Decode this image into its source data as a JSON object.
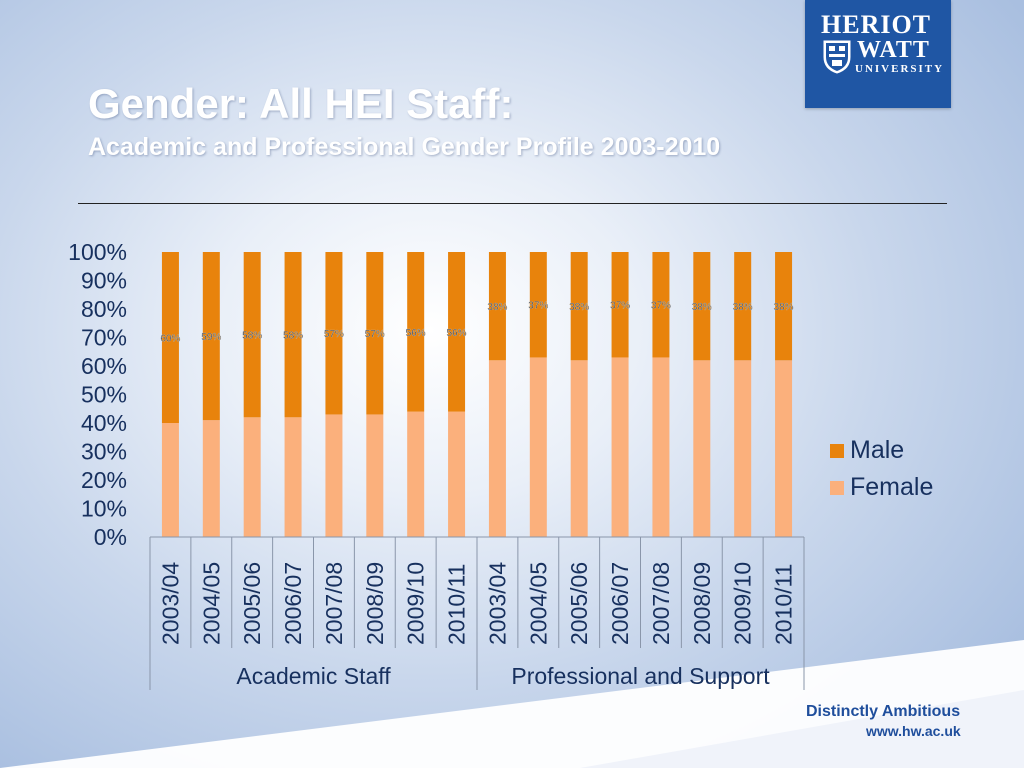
{
  "slide": {
    "title": "Gender: All HEI Staff:",
    "subtitle": "Academic and Professional Gender Profile 2003-2010"
  },
  "logo": {
    "line1": "HERIOT",
    "line2": "WATT",
    "line3": "UNIVERSITY"
  },
  "footer": {
    "tagline": "Distinctly Ambitious",
    "url": "www.hw.ac.uk"
  },
  "colors": {
    "male": "#e8830c",
    "female": "#fbb07c",
    "text": "#17305e",
    "brand": "#1f56a4"
  },
  "chart_data": {
    "type": "bar",
    "stacked": true,
    "percent_stacked": true,
    "title": "",
    "xlabel": "",
    "ylabel": "",
    "ylim": [
      0,
      100
    ],
    "yticks": [
      "0%",
      "10%",
      "20%",
      "30%",
      "40%",
      "50%",
      "60%",
      "70%",
      "80%",
      "90%",
      "100%"
    ],
    "groups": [
      {
        "name": "Academic Staff",
        "count": 8
      },
      {
        "name": "Professional and Support",
        "count": 8
      }
    ],
    "categories": [
      "2003/04",
      "2004/05",
      "2005/06",
      "2006/07",
      "2007/08",
      "2008/09",
      "2009/10",
      "2010/11",
      "2003/04",
      "2004/05",
      "2005/06",
      "2006/07",
      "2007/08",
      "2008/09",
      "2009/10",
      "2010/11"
    ],
    "series": [
      {
        "name": "Female",
        "values": [
          40,
          41,
          42,
          42,
          43,
          43,
          44,
          44,
          62,
          63,
          62,
          63,
          63,
          62,
          62,
          62
        ]
      },
      {
        "name": "Male",
        "values": [
          60,
          59,
          58,
          58,
          57,
          57,
          56,
          56,
          38,
          37,
          38,
          37,
          37,
          38,
          38,
          38
        ],
        "labels": [
          "60%",
          "59%",
          "58%",
          "58%",
          "57%",
          "57%",
          "56%",
          "56%",
          "38%",
          "37%",
          "38%",
          "37%",
          "37%",
          "38%",
          "38%",
          "38%"
        ]
      }
    ],
    "legend": "right",
    "grid": false
  }
}
